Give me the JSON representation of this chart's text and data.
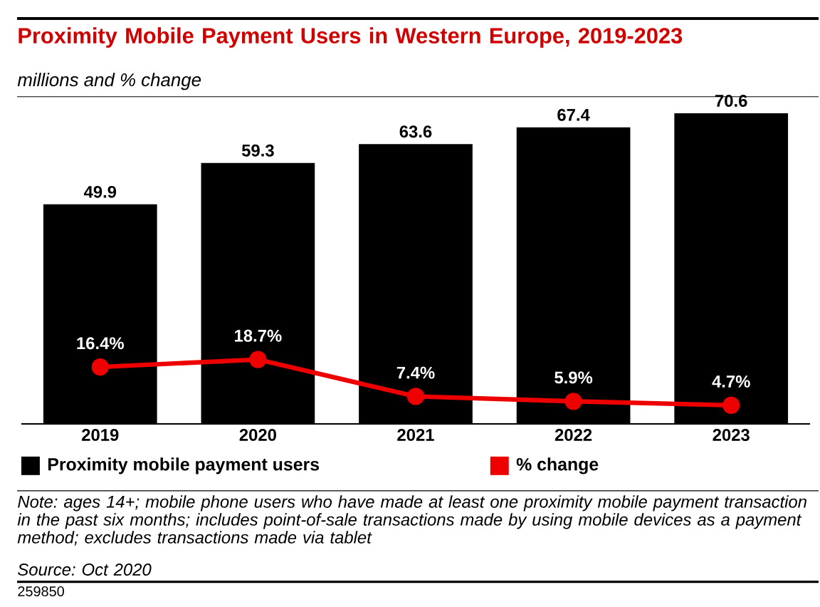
{
  "chart_data": {
    "type": "bar",
    "title": "Proximity Mobile Payment Users in Western Europe, 2019-2023",
    "subtitle": "millions and % change",
    "categories": [
      "2019",
      "2020",
      "2021",
      "2022",
      "2023"
    ],
    "series": [
      {
        "name": "Proximity mobile payment users",
        "color": "#000000",
        "values": [
          49.9,
          59.3,
          63.6,
          67.4,
          70.6
        ]
      },
      {
        "name": "% change",
        "type": "line",
        "axis": "y2",
        "color": "#ee0000",
        "values": [
          16.4,
          18.7,
          7.4,
          5.9,
          4.7
        ],
        "value_labels": [
          "16.4%",
          "18.7%",
          "7.4%",
          "5.9%",
          "4.7%"
        ]
      }
    ],
    "ylim": [
      0,
      75
    ],
    "y2lim": [
      -1,
      100
    ],
    "data_labels": true,
    "legend": "bottom",
    "marker": "circle",
    "line_style": "solid",
    "tick_labels": "x",
    "annotations": [
      "Note: ages 14+; mobile phone users who have made at least one proximity mobile payment transaction in the past six months; includes point-of-sale transactions made by using mobile devices as a payment method; excludes transactions made via tablet",
      "Source: Oct 2020",
      "259850"
    ]
  }
}
